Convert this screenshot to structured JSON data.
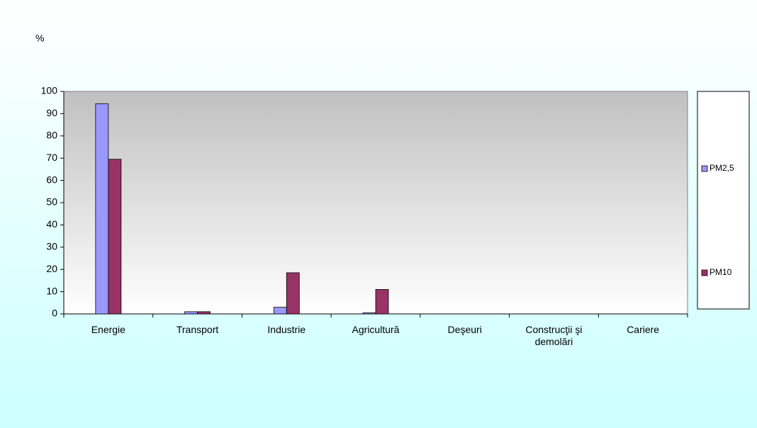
{
  "chart_data": {
    "type": "bar",
    "y_label": "%",
    "categories": [
      "Energie",
      "Transport",
      "Industrie",
      "Agricultură",
      "Deşeuri",
      "Construcţii şi demolări",
      "Cariere"
    ],
    "series": [
      {
        "name": "PM2,5",
        "color": "#9999ff",
        "values": [
          94.5,
          1,
          3,
          0.5,
          0,
          0,
          0
        ]
      },
      {
        "name": "PM10",
        "color": "#993366",
        "values": [
          69.5,
          1,
          18.5,
          11,
          0,
          0,
          0
        ]
      }
    ],
    "ylim": [
      0,
      100
    ],
    "yticks": [
      0,
      10,
      20,
      30,
      40,
      50,
      60,
      70,
      80,
      90,
      100
    ]
  }
}
